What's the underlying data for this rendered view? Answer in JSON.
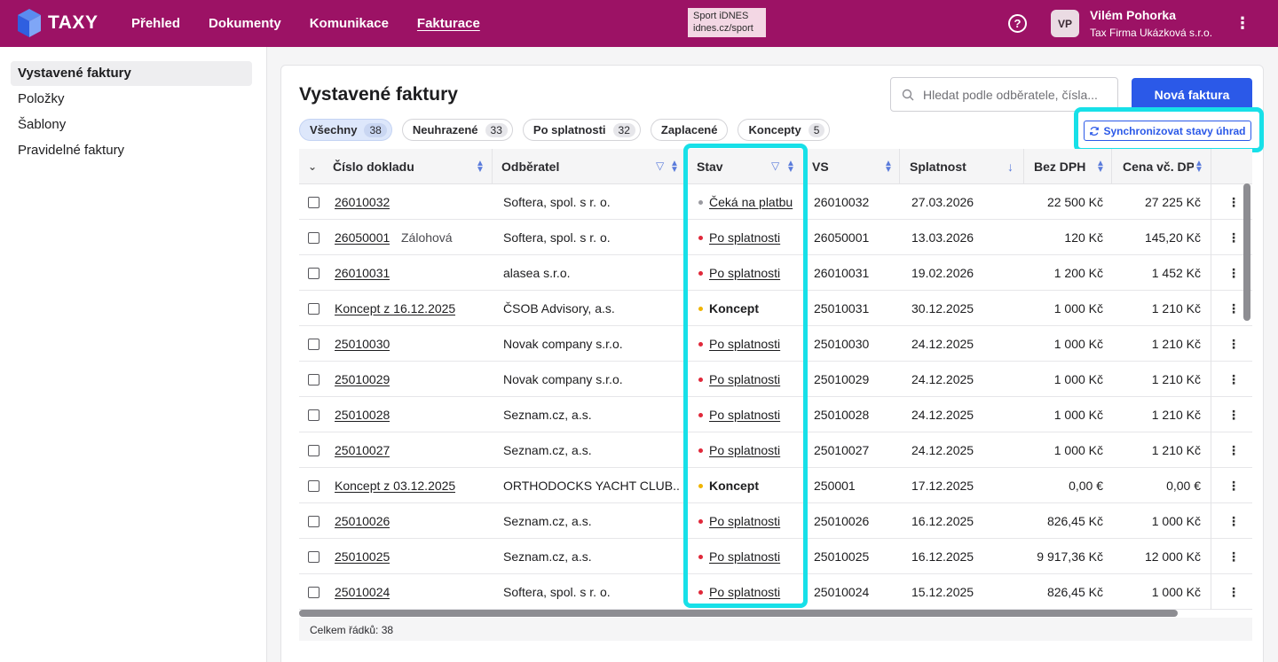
{
  "brand": {
    "name": "TAXY",
    "color": "#9c1265",
    "accent": "#2b59e8",
    "highlight": "#17e0e8"
  },
  "nav": {
    "items": [
      "Přehled",
      "Dokumenty",
      "Komunikace",
      "Fakturace"
    ],
    "active": "Fakturace"
  },
  "ad": {
    "line1": "Sport iDNES",
    "line2": "idnes.cz/sport"
  },
  "user": {
    "initials": "VP",
    "name": "Vilém Pohorka",
    "company": "Tax Firma Ukázková s.r.o."
  },
  "sidebar": {
    "items": [
      "Vystavené faktury",
      "Položky",
      "Šablony",
      "Pravidelné faktury"
    ],
    "active": "Vystavené faktury"
  },
  "page": {
    "title": "Vystavené faktury",
    "search_placeholder": "Hledat podle odběratele, čísla...",
    "new_button": "Nová faktura",
    "sync_button": "Synchronizovat stavy úhrad"
  },
  "filters": [
    {
      "label": "Všechny",
      "count": "38",
      "active": true
    },
    {
      "label": "Neuhrazené",
      "count": "33"
    },
    {
      "label": "Po splatnosti",
      "count": "32"
    },
    {
      "label": "Zaplacené",
      "count": ""
    },
    {
      "label": "Koncepty",
      "count": "5"
    }
  ],
  "table": {
    "columns": [
      "Číslo dokladu",
      "Odběratel",
      "Stav",
      "VS",
      "Splatnost",
      "Bez DPH",
      "Cena vč. DPH"
    ],
    "rows": [
      {
        "number": "26010032",
        "tag": "",
        "customer": "Softera, spol. s r. o.",
        "status": "Čeká na platbu",
        "status_kind": "waiting",
        "vs": "26010032",
        "due": "27.03.2026",
        "net": "22 500 Kč",
        "gross": "27 225 Kč"
      },
      {
        "number": "26050001",
        "tag": "Zálohová",
        "customer": "Softera, spol. s r. o.",
        "status": "Po splatnosti",
        "status_kind": "overdue",
        "vs": "26050001",
        "due": "13.03.2026",
        "net": "120 Kč",
        "gross": "145,20 Kč"
      },
      {
        "number": "26010031",
        "tag": "",
        "customer": "alasea s.r.o.",
        "status": "Po splatnosti",
        "status_kind": "overdue",
        "vs": "26010031",
        "due": "19.02.2026",
        "net": "1 200 Kč",
        "gross": "1 452 Kč"
      },
      {
        "number": "Koncept z 16.12.2025",
        "tag": "",
        "customer": "ČSOB Advisory, a.s.",
        "status": "Koncept",
        "status_kind": "draft",
        "vs": "25010031",
        "due": "30.12.2025",
        "net": "1 000 Kč",
        "gross": "1 210 Kč"
      },
      {
        "number": "25010030",
        "tag": "",
        "customer": "Novak company s.r.o.",
        "status": "Po splatnosti",
        "status_kind": "overdue",
        "vs": "25010030",
        "due": "24.12.2025",
        "net": "1 000 Kč",
        "gross": "1 210 Kč"
      },
      {
        "number": "25010029",
        "tag": "",
        "customer": "Novak company s.r.o.",
        "status": "Po splatnosti",
        "status_kind": "overdue",
        "vs": "25010029",
        "due": "24.12.2025",
        "net": "1 000 Kč",
        "gross": "1 210 Kč"
      },
      {
        "number": "25010028",
        "tag": "",
        "customer": "Seznam.cz, a.s.",
        "status": "Po splatnosti",
        "status_kind": "overdue",
        "vs": "25010028",
        "due": "24.12.2025",
        "net": "1 000 Kč",
        "gross": "1 210 Kč"
      },
      {
        "number": "25010027",
        "tag": "",
        "customer": "Seznam.cz, a.s.",
        "status": "Po splatnosti",
        "status_kind": "overdue",
        "vs": "25010027",
        "due": "24.12.2025",
        "net": "1 000 Kč",
        "gross": "1 210 Kč"
      },
      {
        "number": "Koncept z 03.12.2025",
        "tag": "",
        "customer": "ORTHODOCKS YACHT CLUB...",
        "status": "Koncept",
        "status_kind": "draft",
        "vs": "250001",
        "due": "17.12.2025",
        "net": "0,00 €",
        "gross": "0,00 €"
      },
      {
        "number": "25010026",
        "tag": "",
        "customer": "Seznam.cz, a.s.",
        "status": "Po splatnosti",
        "status_kind": "overdue",
        "vs": "25010026",
        "due": "16.12.2025",
        "net": "826,45 Kč",
        "gross": "1 000 Kč"
      },
      {
        "number": "25010025",
        "tag": "",
        "customer": "Seznam.cz, a.s.",
        "status": "Po splatnosti",
        "status_kind": "overdue",
        "vs": "25010025",
        "due": "16.12.2025",
        "net": "9 917,36 Kč",
        "gross": "12 000 Kč"
      },
      {
        "number": "25010024",
        "tag": "",
        "customer": "Softera, spol. s r. o.",
        "status": "Po splatnosti",
        "status_kind": "overdue",
        "vs": "25010024",
        "due": "15.12.2025",
        "net": "826,45 Kč",
        "gross": "1 000 Kč"
      }
    ],
    "footer": "Celkem řádků: 38"
  },
  "status_colors": {
    "waiting": "#9a9aa0",
    "overdue": "#e0283a",
    "draft": "#f0b400"
  },
  "icons": [
    "search-icon",
    "help-icon",
    "kebab-icon",
    "sync-icon",
    "filter-icon",
    "sort-icon",
    "chevron-down-icon",
    "sort-desc-icon"
  ]
}
